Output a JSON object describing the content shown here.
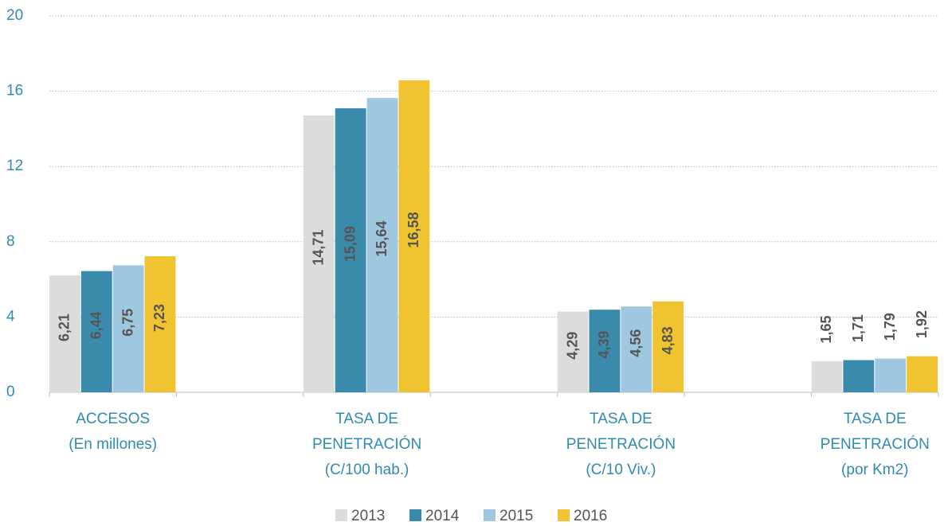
{
  "chart_data": {
    "type": "bar",
    "categories": [
      [
        "ACCESOS",
        "(En millones)"
      ],
      [
        "TASA DE",
        "PENETRACIÓN",
        "(C/100 hab.)"
      ],
      [
        "TASA DE",
        "PENETRACIÓN",
        "(C/10 Viv.)"
      ],
      [
        "TASA DE",
        "PENETRACIÓN",
        "(por Km2)"
      ]
    ],
    "series": [
      {
        "name": "2013",
        "color": "#dcdcdc",
        "values": [
          6.21,
          14.71,
          4.29,
          1.65
        ],
        "value_labels": [
          "6,21",
          "14,71",
          "4,29",
          "1,65"
        ]
      },
      {
        "name": "2014",
        "color": "#3a8aab",
        "values": [
          6.44,
          15.09,
          4.39,
          1.71
        ],
        "value_labels": [
          "6,44",
          "15,09",
          "4,39",
          "1,71"
        ]
      },
      {
        "name": "2015",
        "color": "#9fc7df",
        "values": [
          6.75,
          15.64,
          4.56,
          1.79
        ],
        "value_labels": [
          "6,75",
          "15,64",
          "4,56",
          "1,79"
        ]
      },
      {
        "name": "2016",
        "color": "#efc430",
        "values": [
          7.23,
          16.58,
          4.83,
          1.92
        ],
        "value_labels": [
          "7,23",
          "16,58",
          "4,83",
          "1,92"
        ]
      }
    ],
    "ylim": [
      0,
      20
    ],
    "yticks": [
      0,
      4,
      8,
      12,
      16,
      20
    ],
    "grid": true,
    "legend": "bottom"
  }
}
